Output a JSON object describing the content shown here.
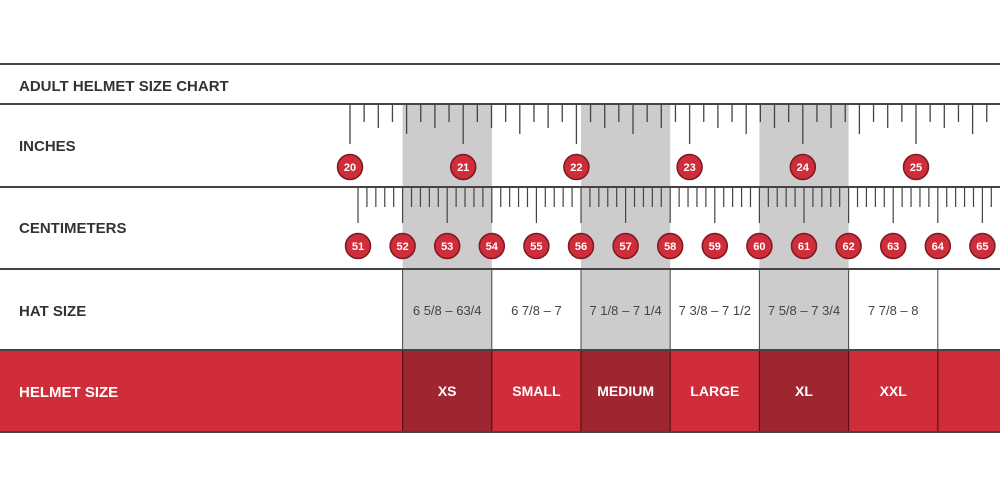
{
  "title": "ADULT HELMET SIZE CHART",
  "rows": {
    "inches": "INCHES",
    "centimeters": "CENTIMETERS",
    "hat_size": "HAT SIZE",
    "helmet_size": "HELMET SIZE"
  },
  "colors": {
    "red": "#cf2d3a",
    "red_dark": "#9e2630",
    "shade": "#cdcbcb",
    "line": "#444444",
    "badge_border": "#7a1a22"
  },
  "inch_labels": [
    "20",
    "21",
    "22",
    "23",
    "24",
    "25"
  ],
  "cm_labels": [
    "51",
    "52",
    "53",
    "54",
    "55",
    "56",
    "57",
    "58",
    "59",
    "60",
    "61",
    "62",
    "63",
    "64",
    "65"
  ],
  "sizes": [
    {
      "helmet": "XS",
      "hat": "6 5/8 – 63/4",
      "cm_range": [
        52,
        54
      ],
      "shaded": true
    },
    {
      "helmet": "SMALL",
      "hat": "6 7/8 – 7",
      "cm_range": [
        54,
        56
      ],
      "shaded": false
    },
    {
      "helmet": "MEDIUM",
      "hat": "7 1/8 – 7 1/4",
      "cm_range": [
        56,
        58
      ],
      "shaded": true
    },
    {
      "helmet": "LARGE",
      "hat": "7 3/8 – 7 1/2",
      "cm_range": [
        58,
        60
      ],
      "shaded": false
    },
    {
      "helmet": "XL",
      "hat": "7 5/8 – 7 3/4",
      "cm_range": [
        60,
        62
      ],
      "shaded": true
    },
    {
      "helmet": "XXL",
      "hat": "7 7/8 – 8",
      "cm_range": [
        62,
        64
      ],
      "shaded": false
    }
  ]
}
